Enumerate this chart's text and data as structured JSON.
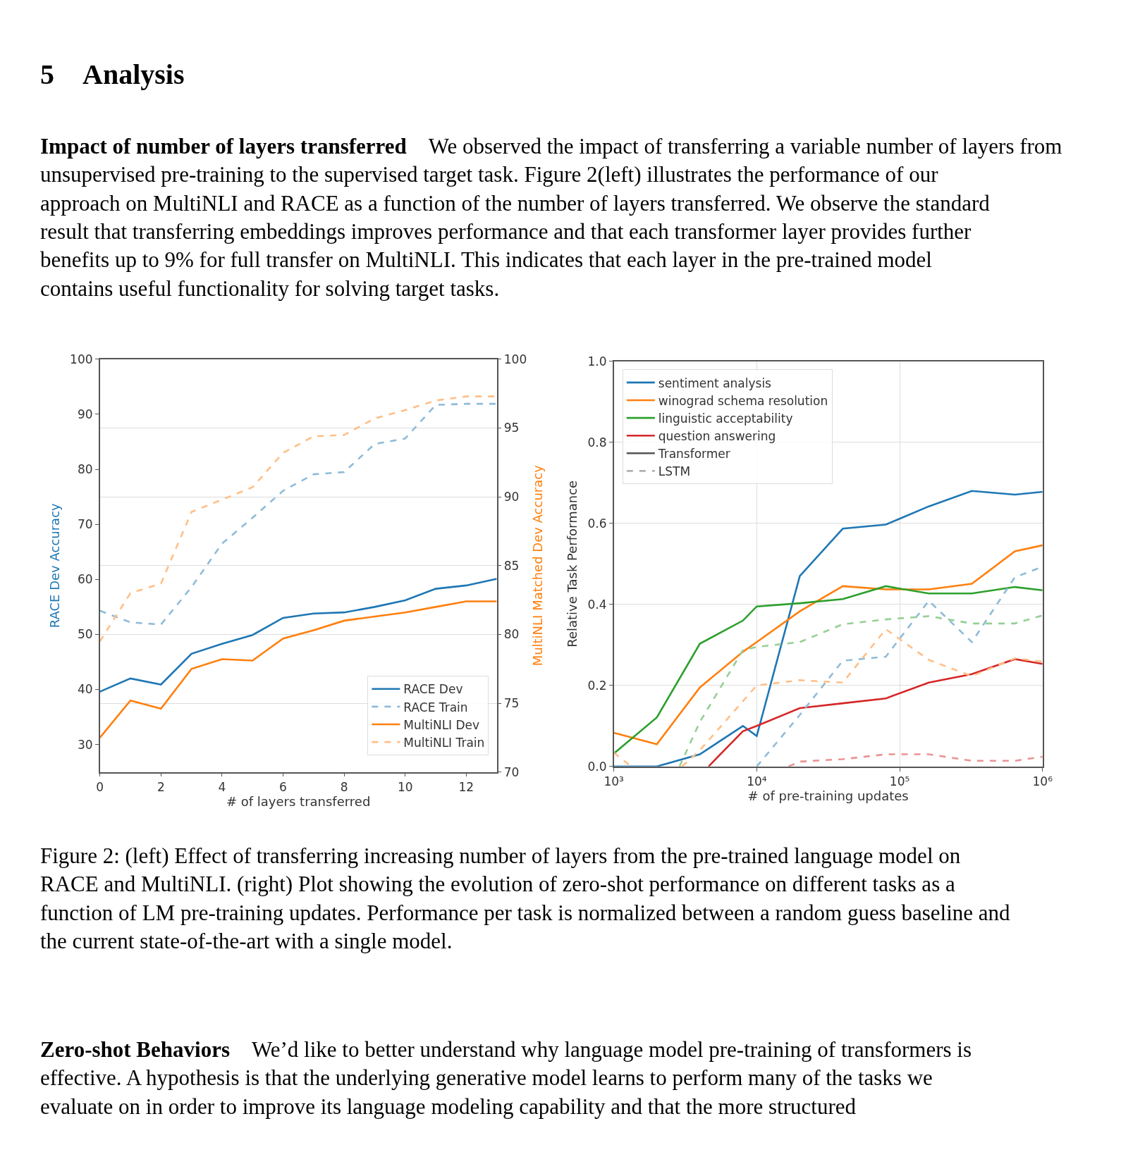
{
  "chart_data": [
    {
      "type": "line",
      "xlabel": "# of layers transferred",
      "ylabel": "RACE Dev Accuracy",
      "y2label": "MultiNLI Matched Dev Accuracy",
      "annotations": [
        "5 Analysis",
        "Impact of number of layers transferred",
        "We observed the impact of transferring a variable number of layers from unsupervised pre-training to the supervised target task. Figure 2(left) illustrates the performance of our approach on MultiNLI and RACE as a function of the number of layers transferred. We observe the standard result that transferring embeddings improves performance and that each transformer layer provides further benefits up to 9% for full transfer on MultiNLI. This indicates that each layer in the pre-trained model contains useful functionality for solving target tasks."
      ],
      "x": [
        0,
        1,
        2,
        3,
        4,
        5,
        6,
        7,
        8,
        9,
        10,
        11,
        12,
        13
      ],
      "xlim": [
        0,
        13
      ],
      "xticks": [
        0,
        2,
        4,
        6,
        8,
        10,
        12
      ],
      "ylim": [
        25,
        100
      ],
      "yticks": [
        30,
        40,
        50,
        60,
        70,
        80,
        90,
        100
      ],
      "y2lim": [
        70,
        100
      ],
      "y2ticks": [
        70,
        75,
        80,
        85,
        90,
        95,
        100
      ],
      "grid": "y2",
      "legend": "bottom right",
      "series": [
        {
          "name": "RACE Dev",
          "color": "#1f77b4",
          "line_style": "solid",
          "axis": "y",
          "values": [
            39.6,
            42.0,
            40.9,
            46.5,
            48.3,
            49.9,
            53.0,
            53.8,
            54.0,
            55.0,
            56.2,
            58.3,
            58.9,
            60.1
          ]
        },
        {
          "name": "RACE Train",
          "color": "#8fbbd9",
          "line_style": "dashed",
          "axis": "y",
          "values": [
            54.3,
            52.2,
            51.8,
            58.6,
            66.5,
            71.2,
            76.1,
            79.1,
            79.5,
            84.6,
            85.6,
            91.7,
            91.9,
            91.9
          ]
        },
        {
          "name": "MultiNLI Dev",
          "color": "#ff7f0e",
          "line_style": "solid",
          "axis": "y2",
          "values": [
            72.5,
            75.2,
            74.6,
            77.5,
            78.2,
            78.1,
            79.7,
            80.3,
            81.0,
            81.3,
            81.6,
            82.0,
            82.4,
            82.4
          ]
        },
        {
          "name": "MultiNLI Train",
          "color": "#ffbf86",
          "line_style": "dashed",
          "axis": "y2",
          "values": [
            79.5,
            83.0,
            83.7,
            88.9,
            89.8,
            90.7,
            93.2,
            94.4,
            94.5,
            95.7,
            96.3,
            97.0,
            97.3,
            97.3
          ]
        }
      ]
    },
    {
      "type": "line",
      "xlabel": "# of pre-training updates",
      "ylabel": "Relative Task Performance",
      "annotations": [
        "Figure 2: (left) Effect of transferring increasing number of layers from the pre-trained language model on RACE and MultiNLI. (right) Plot showing the evolution of zero-shot performance on different tasks as a function of LM pre-training updates. Performance per task is normalized between a random guess baseline and the current state-of-the-art with a single model.",
        "Zero-shot Behaviors",
        "We’d like to better understand why language model pre-training of transformers is effective. A hypothesis is that the underlying generative model learns to perform many of the tasks we evaluate on in order to improve its language modeling capability and that the more structured"
      ],
      "log": "x",
      "xlim": [
        1000,
        1000000
      ],
      "xticks": [
        {
          "value": 1000,
          "label": "10³"
        },
        {
          "value": 10000,
          "label": "10⁴"
        },
        {
          "value": 100000,
          "label": "10⁵"
        },
        {
          "value": 1000000,
          "label": "10⁶"
        }
      ],
      "ylim": [
        0,
        1
      ],
      "yticks": [
        {
          "value": 0,
          "label": "0.0"
        },
        {
          "value": 0.2,
          "label": "0.2"
        },
        {
          "value": 0.4,
          "label": "0.4"
        },
        {
          "value": 0.6,
          "label": "0.6"
        },
        {
          "value": 0.8,
          "label": "0.8"
        },
        {
          "value": 1,
          "label": "1.0"
        }
      ],
      "grid": true,
      "legend": "top left",
      "series": [
        {
          "name": "sentiment analysis",
          "color": "#1f77b4",
          "line_style": "solid",
          "x": [
            1000,
            2000,
            4000,
            8000,
            10000,
            20000,
            40000,
            80000,
            160000,
            320000,
            640000,
            1000000
          ],
          "values": [
            0,
            0,
            0.03,
            0.1,
            0.075,
            0.47,
            0.587,
            0.597,
            0.642,
            0.68,
            0.671,
            0.678
          ]
        },
        {
          "name": "winograd schema resolution",
          "color": "#ff7f0e",
          "line_style": "solid",
          "x": [
            1000,
            2000,
            4000,
            8000,
            10000,
            20000,
            40000,
            80000,
            160000,
            320000,
            640000,
            1000000
          ],
          "values": [
            0.083,
            0.055,
            0.195,
            0.283,
            0.307,
            0.383,
            0.445,
            0.437,
            0.437,
            0.451,
            0.531,
            0.546
          ]
        },
        {
          "name": "linguistic acceptability",
          "color": "#2ca02c",
          "line_style": "solid",
          "x": [
            1000,
            2000,
            4000,
            8000,
            10000,
            20000,
            40000,
            80000,
            160000,
            320000,
            640000,
            1000000
          ],
          "values": [
            0.032,
            0.121,
            0.303,
            0.36,
            0.395,
            0.403,
            0.413,
            0.445,
            0.427,
            0.427,
            0.443,
            0.435
          ]
        },
        {
          "name": "question answering",
          "color": "#d62728",
          "line_style": "solid",
          "x": [
            4600,
            8000,
            10000,
            20000,
            40000,
            80000,
            160000,
            320000,
            640000,
            1000000
          ],
          "values": [
            0,
            0.087,
            0.1,
            0.144,
            0.156,
            0.168,
            0.207,
            0.228,
            0.265,
            0.253
          ]
        },
        {
          "name": "Transformer",
          "color": "#555555",
          "line_style": "solid"
        },
        {
          "name": "LSTM",
          "color": "#b0b0b0",
          "line_style": "dashed"
        },
        {
          "color": "#8fbbd9",
          "line_style": "dashed",
          "x": [
            10000,
            20000,
            40000,
            80000,
            160000,
            320000,
            640000,
            1000000
          ],
          "values": [
            0,
            0.127,
            0.261,
            0.271,
            0.409,
            0.307,
            0.467,
            0.493
          ]
        },
        {
          "color": "#ffbf86",
          "line_style": "dashed",
          "x": [
            1000,
            1325,
            2000,
            3000,
            4000,
            10000,
            20000,
            40000,
            80000,
            160000,
            320000,
            640000,
            1000000
          ],
          "values": [
            0.034,
            0,
            null,
            0,
            0.04,
            0.2,
            0.213,
            0.207,
            0.339,
            0.263,
            0.223,
            0.267,
            0.259
          ]
        },
        {
          "color": "#95cf95",
          "line_style": "dashed",
          "x": [
            2880,
            4000,
            8000,
            10000,
            20000,
            40000,
            80000,
            160000,
            320000,
            640000,
            1000000
          ],
          "values": [
            0,
            0.11,
            0.287,
            0.295,
            0.307,
            0.351,
            0.363,
            0.371,
            0.353,
            0.353,
            0.373
          ]
        },
        {
          "color": "#eb9393",
          "line_style": "dashed",
          "x": [
            16700,
            20000,
            40000,
            80000,
            160000,
            320000,
            640000,
            1000000
          ],
          "values": [
            0,
            0.012,
            0.018,
            0.03,
            0.03,
            0.014,
            0.014,
            0.024
          ]
        }
      ]
    }
  ]
}
